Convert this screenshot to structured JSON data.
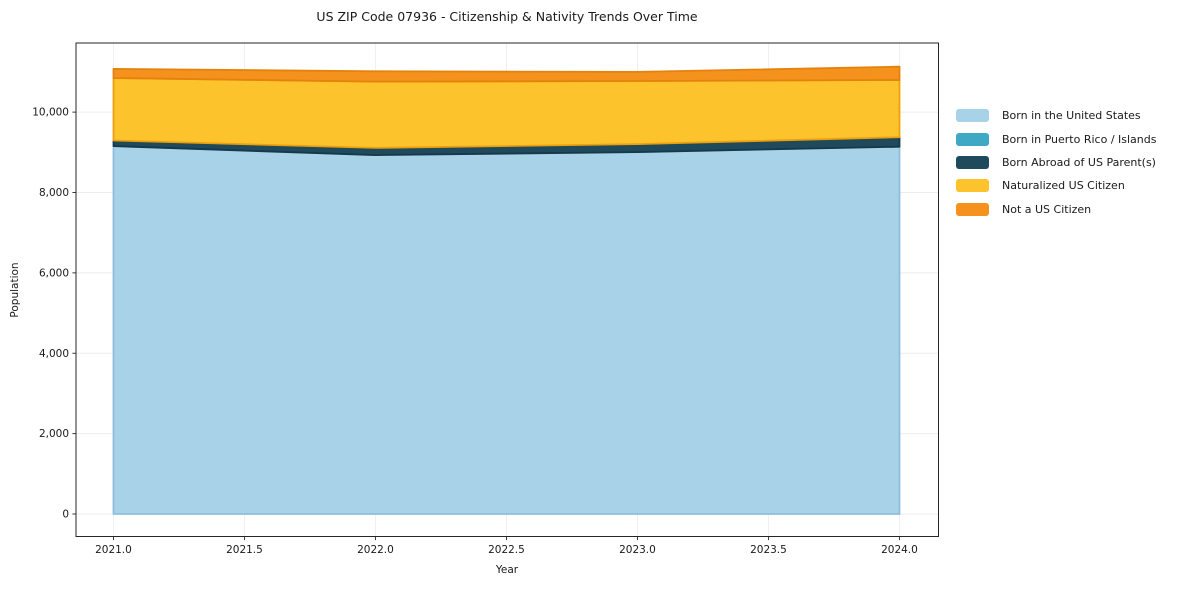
{
  "figure": {
    "title": "US ZIP Code 07936 - Citizenship & Nativity Trends Over Time",
    "xlabel": "Year",
    "ylabel": "Population"
  },
  "chart_data": {
    "type": "area",
    "stacked": true,
    "title": "US ZIP Code 07936 - Citizenship & Nativity Trends Over Time",
    "xlabel": "Year",
    "ylabel": "Population",
    "x": [
      2021,
      2022,
      2023,
      2024
    ],
    "series": [
      {
        "name": "Born in the United States",
        "color": "#A7D2E8",
        "edge": "#8CBFDC",
        "values": [
          9155,
          8930,
          9005,
          9140
        ]
      },
      {
        "name": "Born in Puerto Rico / Islands",
        "color": "#3FA8C4",
        "edge": "#2E93AF",
        "values": [
          0,
          0,
          0,
          0
        ]
      },
      {
        "name": "Born Abroad of US Parent(s)",
        "color": "#1F4A5C",
        "edge": "#16384A",
        "values": [
          140,
          180,
          200,
          235
        ]
      },
      {
        "name": "Naturalized US Citizen",
        "color": "#FDC32D",
        "edge": "#EDA00E",
        "values": [
          1555,
          1650,
          1570,
          1425
        ]
      },
      {
        "name": "Not a US Citizen",
        "color": "#F5921E",
        "edge": "#E5820C",
        "values": [
          225,
          255,
          225,
          330
        ]
      }
    ],
    "totals": [
      11075,
      11015,
      11000,
      11130
    ],
    "xlim": [
      2020.857,
      2024.149
    ],
    "ylim": [
      -560,
      11720
    ],
    "xticks": {
      "values": [
        2021.0,
        2021.5,
        2022.0,
        2022.5,
        2023.0,
        2023.5,
        2024.0
      ],
      "labels": [
        "2021.0",
        "2021.5",
        "2022.0",
        "2022.5",
        "2023.0",
        "2023.5",
        "2024.0"
      ]
    },
    "yticks": {
      "values": [
        0,
        2000,
        4000,
        6000,
        8000,
        10000
      ],
      "labels": [
        "0",
        "2,000",
        "4,000",
        "6,000",
        "8,000",
        "10,000"
      ]
    },
    "grid": true,
    "legend_position": "right"
  },
  "style": {
    "spine_color": "#262626",
    "tick_color": "#262626",
    "grid_color": "rgba(0,0,0,0.07)",
    "text_color": "#1a1a1a"
  }
}
